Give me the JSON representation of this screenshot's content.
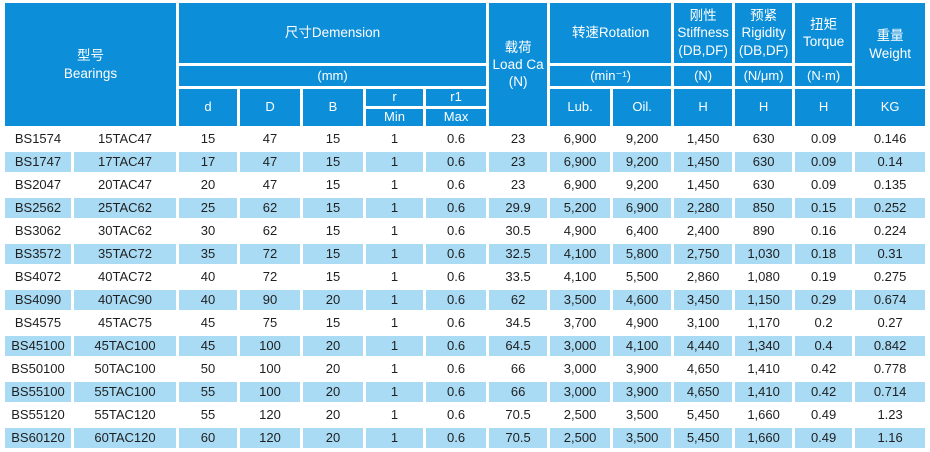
{
  "colors": {
    "header_blue": "#0d8ed8",
    "row_highlight": "#a9dbf4",
    "body_text": "#1f1f1f",
    "header_text": "#ffffff",
    "background": "#ffffff"
  },
  "table": {
    "header": {
      "bearings": "型号\nBearings",
      "dimension_title": "尺寸Demension",
      "dimension_unit": "(mm)",
      "col_d": "d",
      "col_D": "D",
      "col_B": "B",
      "col_r": "r",
      "col_r_min": "Min",
      "col_r1": "r1",
      "col_r1_max": "Max",
      "load_title": "载荷\nLoad Ca\n(N)",
      "rotation_title": "转速Rotation",
      "rotation_unit": "(min⁻¹)",
      "col_lub": "Lub.",
      "col_oil": "Oil.",
      "stiffness_title": "刚性\nStiffness\n(DB,DF)",
      "stiffness_unit": "(N)",
      "stiffness_h": "H",
      "rigidity_title": "预紧\nRigidity\n(DB,DF)",
      "rigidity_unit": "(N/μm)",
      "rigidity_h": "H",
      "torque_title": "扭矩\nTorque",
      "torque_unit": "(N·m)",
      "torque_h": "H",
      "weight_title": "重量\nWeight",
      "weight_unit": "KG"
    },
    "rows": [
      [
        "BS1574",
        "15TAC47",
        "15",
        "47",
        "15",
        "1",
        "0.6",
        "23",
        "6,900",
        "9,200",
        "1,450",
        "630",
        "0.09",
        "0.146"
      ],
      [
        "BS1747",
        "17TAC47",
        "17",
        "47",
        "15",
        "1",
        "0.6",
        "23",
        "6,900",
        "9,200",
        "1,450",
        "630",
        "0.09",
        "0.14"
      ],
      [
        "BS2047",
        "20TAC47",
        "20",
        "47",
        "15",
        "1",
        "0.6",
        "23",
        "6,900",
        "9,200",
        "1,450",
        "630",
        "0.09",
        "0.135"
      ],
      [
        "BS2562",
        "25TAC62",
        "25",
        "62",
        "15",
        "1",
        "0.6",
        "29.9",
        "5,200",
        "6,900",
        "2,280",
        "850",
        "0.15",
        "0.252"
      ],
      [
        "BS3062",
        "30TAC62",
        "30",
        "62",
        "15",
        "1",
        "0.6",
        "30.5",
        "4,900",
        "6,400",
        "2,400",
        "890",
        "0.16",
        "0.224"
      ],
      [
        "BS3572",
        "35TAC72",
        "35",
        "72",
        "15",
        "1",
        "0.6",
        "32.5",
        "4,100",
        "5,800",
        "2,750",
        "1,030",
        "0.18",
        "0.31"
      ],
      [
        "BS4072",
        "40TAC72",
        "40",
        "72",
        "15",
        "1",
        "0.6",
        "33.5",
        "4,100",
        "5,500",
        "2,860",
        "1,080",
        "0.19",
        "0.275"
      ],
      [
        "BS4090",
        "40TAC90",
        "40",
        "90",
        "20",
        "1",
        "0.6",
        "62",
        "3,500",
        "4,600",
        "3,450",
        "1,150",
        "0.29",
        "0.674"
      ],
      [
        "BS4575",
        "45TAC75",
        "45",
        "75",
        "15",
        "1",
        "0.6",
        "34.5",
        "3,700",
        "4,900",
        "3,100",
        "1,170",
        "0.2",
        "0.27"
      ],
      [
        "BS45100",
        "45TAC100",
        "45",
        "100",
        "20",
        "1",
        "0.6",
        "64.5",
        "3,000",
        "4,100",
        "4,440",
        "1,340",
        "0.4",
        "0.842"
      ],
      [
        "BS50100",
        "50TAC100",
        "50",
        "100",
        "20",
        "1",
        "0.6",
        "66",
        "3,000",
        "3,900",
        "4,650",
        "1,410",
        "0.42",
        "0.778"
      ],
      [
        "BS55100",
        "55TAC100",
        "55",
        "100",
        "20",
        "1",
        "0.6",
        "66",
        "3,000",
        "3,900",
        "4,650",
        "1,410",
        "0.42",
        "0.714"
      ],
      [
        "BS55120",
        "55TAC120",
        "55",
        "120",
        "20",
        "1",
        "0.6",
        "70.5",
        "2,500",
        "3,500",
        "5,450",
        "1,660",
        "0.49",
        "1.23"
      ],
      [
        "BS60120",
        "60TAC120",
        "60",
        "120",
        "20",
        "1",
        "0.6",
        "70.5",
        "2,500",
        "3,500",
        "5,450",
        "1,660",
        "0.49",
        "1.16"
      ]
    ]
  }
}
